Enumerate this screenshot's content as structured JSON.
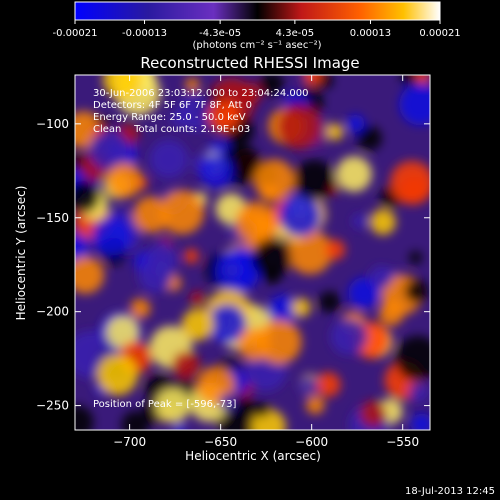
{
  "colorbar": {
    "ticks": [
      "-0.00021",
      "-0.00013",
      "-4.3e-05",
      "4.3e-05",
      "0.00013",
      "0.00021"
    ],
    "values": [
      -0.00021,
      -0.00013,
      -4.3e-05,
      4.3e-05,
      0.00013,
      0.00021
    ],
    "unit_label": "(photons cm⁻² s⁻¹ asec⁻²)",
    "range": [
      -0.00021,
      0.00021
    ]
  },
  "chart_data": {
    "type": "heatmap",
    "title": "Reconstructed RHESSI Image",
    "xlabel": "Heliocentric X (arcsec)",
    "ylabel": "Heliocentric Y (arcsec)",
    "xlim": [
      -730,
      -535
    ],
    "ylim": [
      -263,
      -74
    ],
    "xticks": [
      -700,
      -650,
      -600,
      -550
    ],
    "yticks": [
      -100,
      -150,
      -200,
      -250
    ],
    "xtick_labels": [
      "−700",
      "−650",
      "−600",
      "−550"
    ],
    "ytick_labels": [
      "−100",
      "−150",
      "−200",
      "−250"
    ],
    "annotations": {
      "time": "30-Jun-2006 23:03:12.000 to 23:04:24.000",
      "detectors": "Detectors: 4F 5F 6F 7F 8F, Att 0",
      "energy": "Energy Range: 25.0 - 50.0 keV",
      "clean": "Clean    Total counts: 2.19E+03",
      "peak": "Position of Peak = [-596,-73]"
    },
    "peak_position": [
      -596,
      -73
    ]
  },
  "footer": {
    "timestamp": "18-Jul-2013 12:45"
  }
}
